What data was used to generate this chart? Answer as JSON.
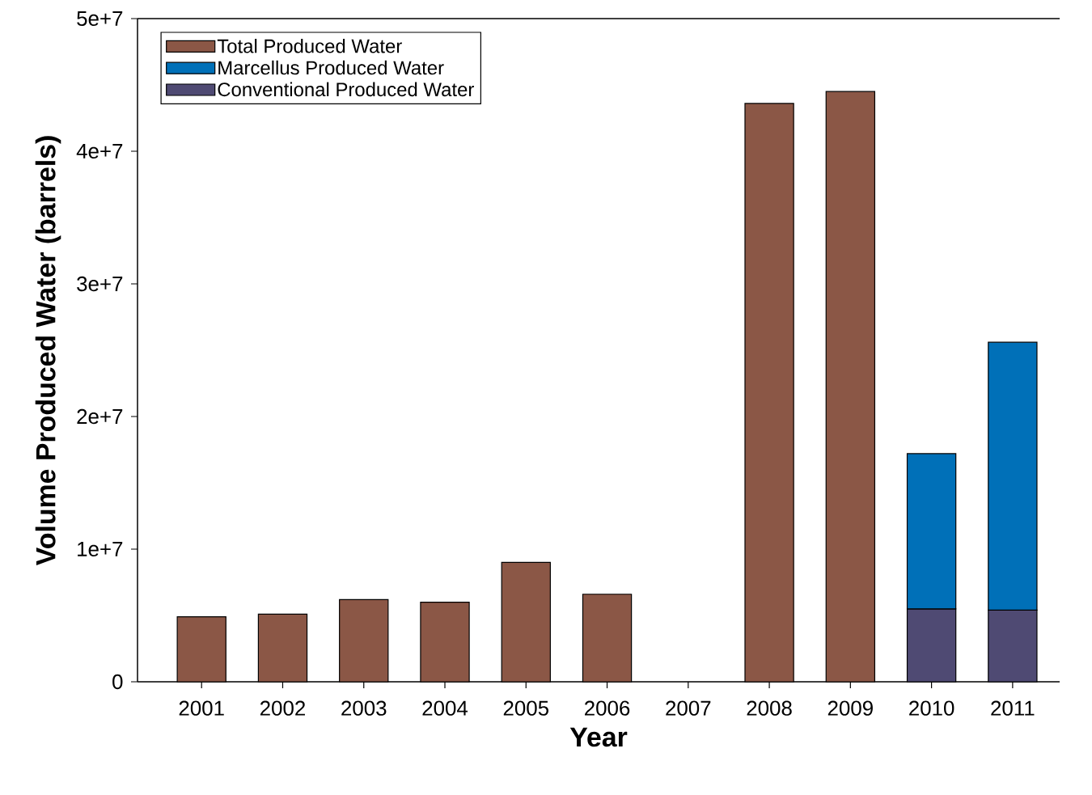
{
  "chart_data": {
    "type": "bar",
    "stacked": true,
    "xlabel": "Year",
    "ylabel": "Volume Produced Water (barrels)",
    "categories": [
      "2001",
      "2002",
      "2003",
      "2004",
      "2005",
      "2006",
      "2007",
      "2008",
      "2009",
      "2010",
      "2011"
    ],
    "series": [
      {
        "name": "Conventional Produced Water",
        "color": "#4f4a73",
        "values": [
          null,
          null,
          null,
          null,
          null,
          null,
          null,
          null,
          null,
          5500000,
          5400000
        ]
      },
      {
        "name": "Marcellus Produced Water",
        "color": "#0070b8",
        "values": [
          null,
          null,
          null,
          null,
          null,
          null,
          null,
          null,
          null,
          11700000,
          20200000
        ]
      },
      {
        "name": "Total Produced Water",
        "color": "#8b5746",
        "values": [
          4900000,
          5100000,
          6200000,
          6000000,
          9000000,
          6600000,
          null,
          43600000,
          44500000,
          null,
          null
        ]
      }
    ],
    "ylim": [
      0,
      50000000
    ],
    "yticks": [
      0,
      {
        "value": 10000000,
        "label": "1e+7"
      },
      {
        "value": 20000000,
        "label": "2e+7"
      },
      {
        "value": 30000000,
        "label": "3e+7"
      },
      {
        "value": 40000000,
        "label": "4e+7"
      },
      {
        "value": 50000000,
        "label": "5e+7"
      }
    ],
    "legend": "top left"
  }
}
